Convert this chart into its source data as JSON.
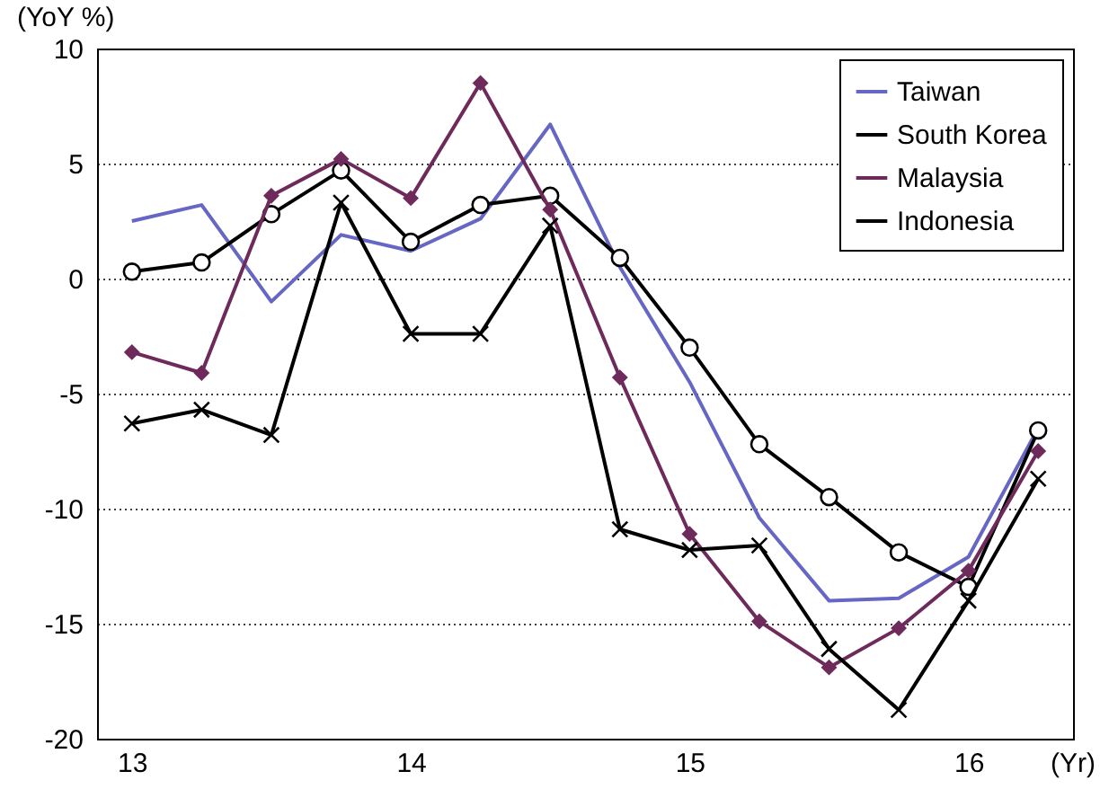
{
  "chart_data": {
    "type": "line",
    "xlabel": "(Yr)",
    "ylabel": "(YoY %)",
    "categories": [
      "13",
      null,
      null,
      null,
      "14",
      null,
      null,
      null,
      "15",
      null,
      null,
      null,
      "16",
      null
    ],
    "series": [
      {
        "name": "Taiwan",
        "color": "#6666c4",
        "marker": "none",
        "values": [
          2.5,
          3.2,
          -1.0,
          1.9,
          1.2,
          2.6,
          6.7,
          0.5,
          -4.5,
          -10.4,
          -14.0,
          -13.9,
          -12.1,
          -6.5
        ]
      },
      {
        "name": "South Korea",
        "color": "#000000",
        "marker": "circle",
        "values": [
          0.3,
          0.7,
          2.8,
          4.7,
          1.6,
          3.2,
          3.6,
          0.9,
          -3.0,
          -7.2,
          -9.5,
          -11.9,
          -13.4,
          -6.6
        ]
      },
      {
        "name": "Malaysia",
        "color": "#6e2a5a",
        "marker": "diamond",
        "values": [
          -3.2,
          -4.1,
          3.6,
          5.2,
          3.5,
          8.5,
          3.0,
          -4.3,
          -11.1,
          -14.9,
          -16.9,
          -15.2,
          -12.7,
          -7.5
        ]
      },
      {
        "name": "Indonesia",
        "color": "#000000",
        "marker": "cross",
        "values": [
          -6.3,
          -5.7,
          -6.8,
          3.3,
          -2.4,
          -2.4,
          2.3,
          -10.9,
          -11.8,
          -11.6,
          -16.1,
          -18.75,
          -14.0,
          -8.7
        ]
      }
    ],
    "ylim": [
      -20,
      10
    ],
    "yticks": [
      -20,
      -15,
      -10,
      -5,
      0,
      5,
      10
    ],
    "grid": "y",
    "legend": "top right"
  }
}
